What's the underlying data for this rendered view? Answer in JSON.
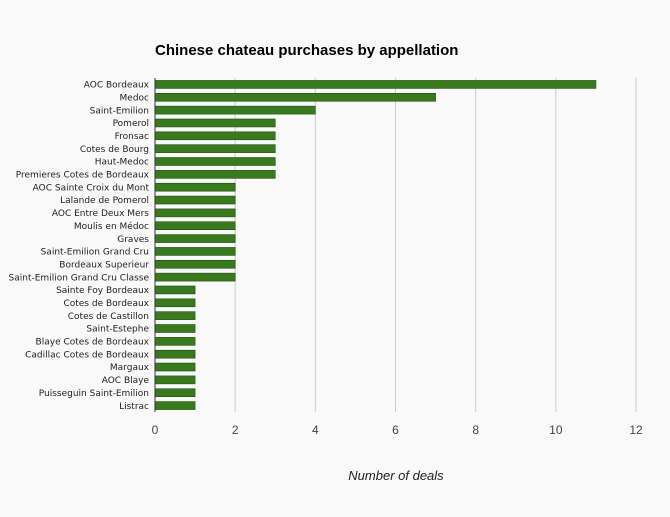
{
  "chart_data": {
    "type": "bar",
    "orientation": "horizontal",
    "title": "Chinese chateau purchases by appellation",
    "xlabel": "Number of deals",
    "ylabel": "",
    "xlim": [
      0,
      12
    ],
    "xticks": [
      0,
      2,
      4,
      6,
      8,
      10,
      12
    ],
    "grid": true,
    "legend": "none",
    "bar_color": "#3a7a1e",
    "categories": [
      "AOC Bordeaux",
      "Medoc",
      "Saint-Emilion",
      "Pomerol",
      "Fronsac",
      "Cotes de Bourg",
      "Haut-Medoc",
      "Premieres Cotes de Bordeaux",
      "AOC Sainte Croix du Mont",
      "Lalande de Pomerol",
      "AOC Entre Deux Mers",
      "Moulis en Médoc",
      "Graves",
      "Saint-Emilion Grand Cru",
      "Bordeaux Superieur",
      "Saint-Emilion Grand Cru Classe",
      "Sainte Foy Bordeaux",
      "Cotes de Bordeaux",
      "Cotes de Castillon",
      "Saint-Estephe",
      "Blaye Cotes de Bordeaux",
      "Cadillac Cotes de Bordeaux",
      "Margaux",
      "AOC Blaye",
      "Puisseguin Saint-Emilion",
      "Listrac"
    ],
    "values": [
      11,
      7,
      4,
      3,
      3,
      3,
      3,
      3,
      2,
      2,
      2,
      2,
      2,
      2,
      2,
      2,
      1,
      1,
      1,
      1,
      1,
      1,
      1,
      1,
      1,
      1
    ]
  }
}
